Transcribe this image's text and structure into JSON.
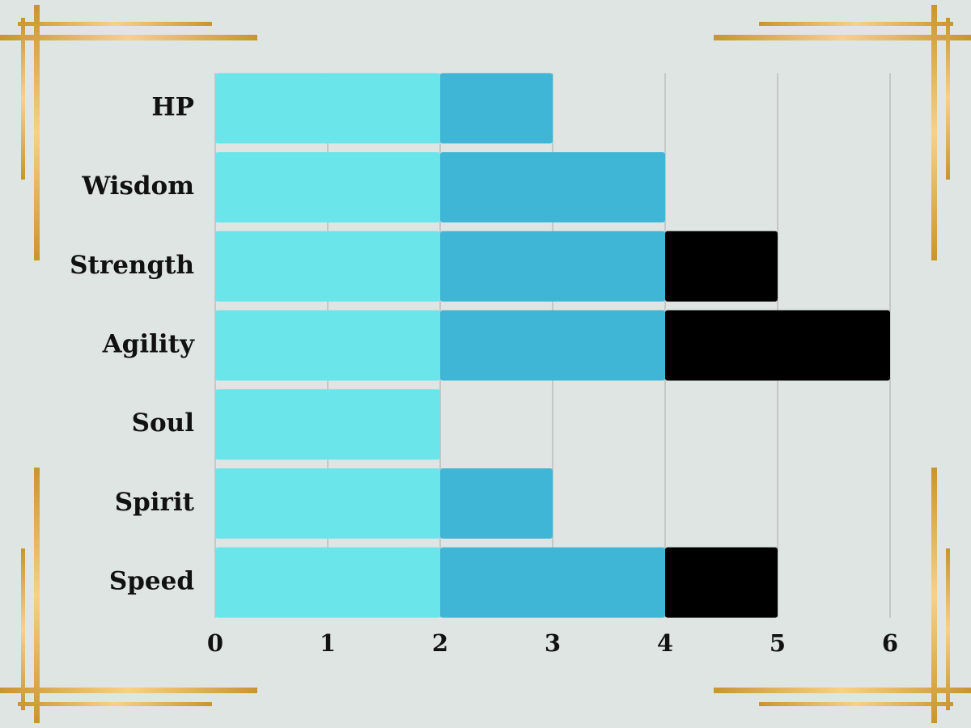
{
  "chart_data": {
    "type": "stacked-barh",
    "categories": [
      "HP",
      "Wisdom",
      "Strength",
      "Agility",
      "Soul",
      "Spirit",
      "Speed"
    ],
    "series": [
      {
        "color": "#6ae5ea",
        "values": [
          2,
          2,
          2,
          2,
          2,
          2,
          2
        ]
      },
      {
        "color": "#40b6d6",
        "values": [
          1,
          2,
          2,
          2,
          0,
          1,
          2
        ]
      },
      {
        "color": "#000000",
        "values": [
          0,
          0,
          1,
          2,
          0,
          0,
          1
        ]
      }
    ],
    "xlim": [
      0,
      6
    ],
    "xticks": [
      0,
      1,
      2,
      3,
      4,
      5,
      6
    ],
    "grid": true
  }
}
